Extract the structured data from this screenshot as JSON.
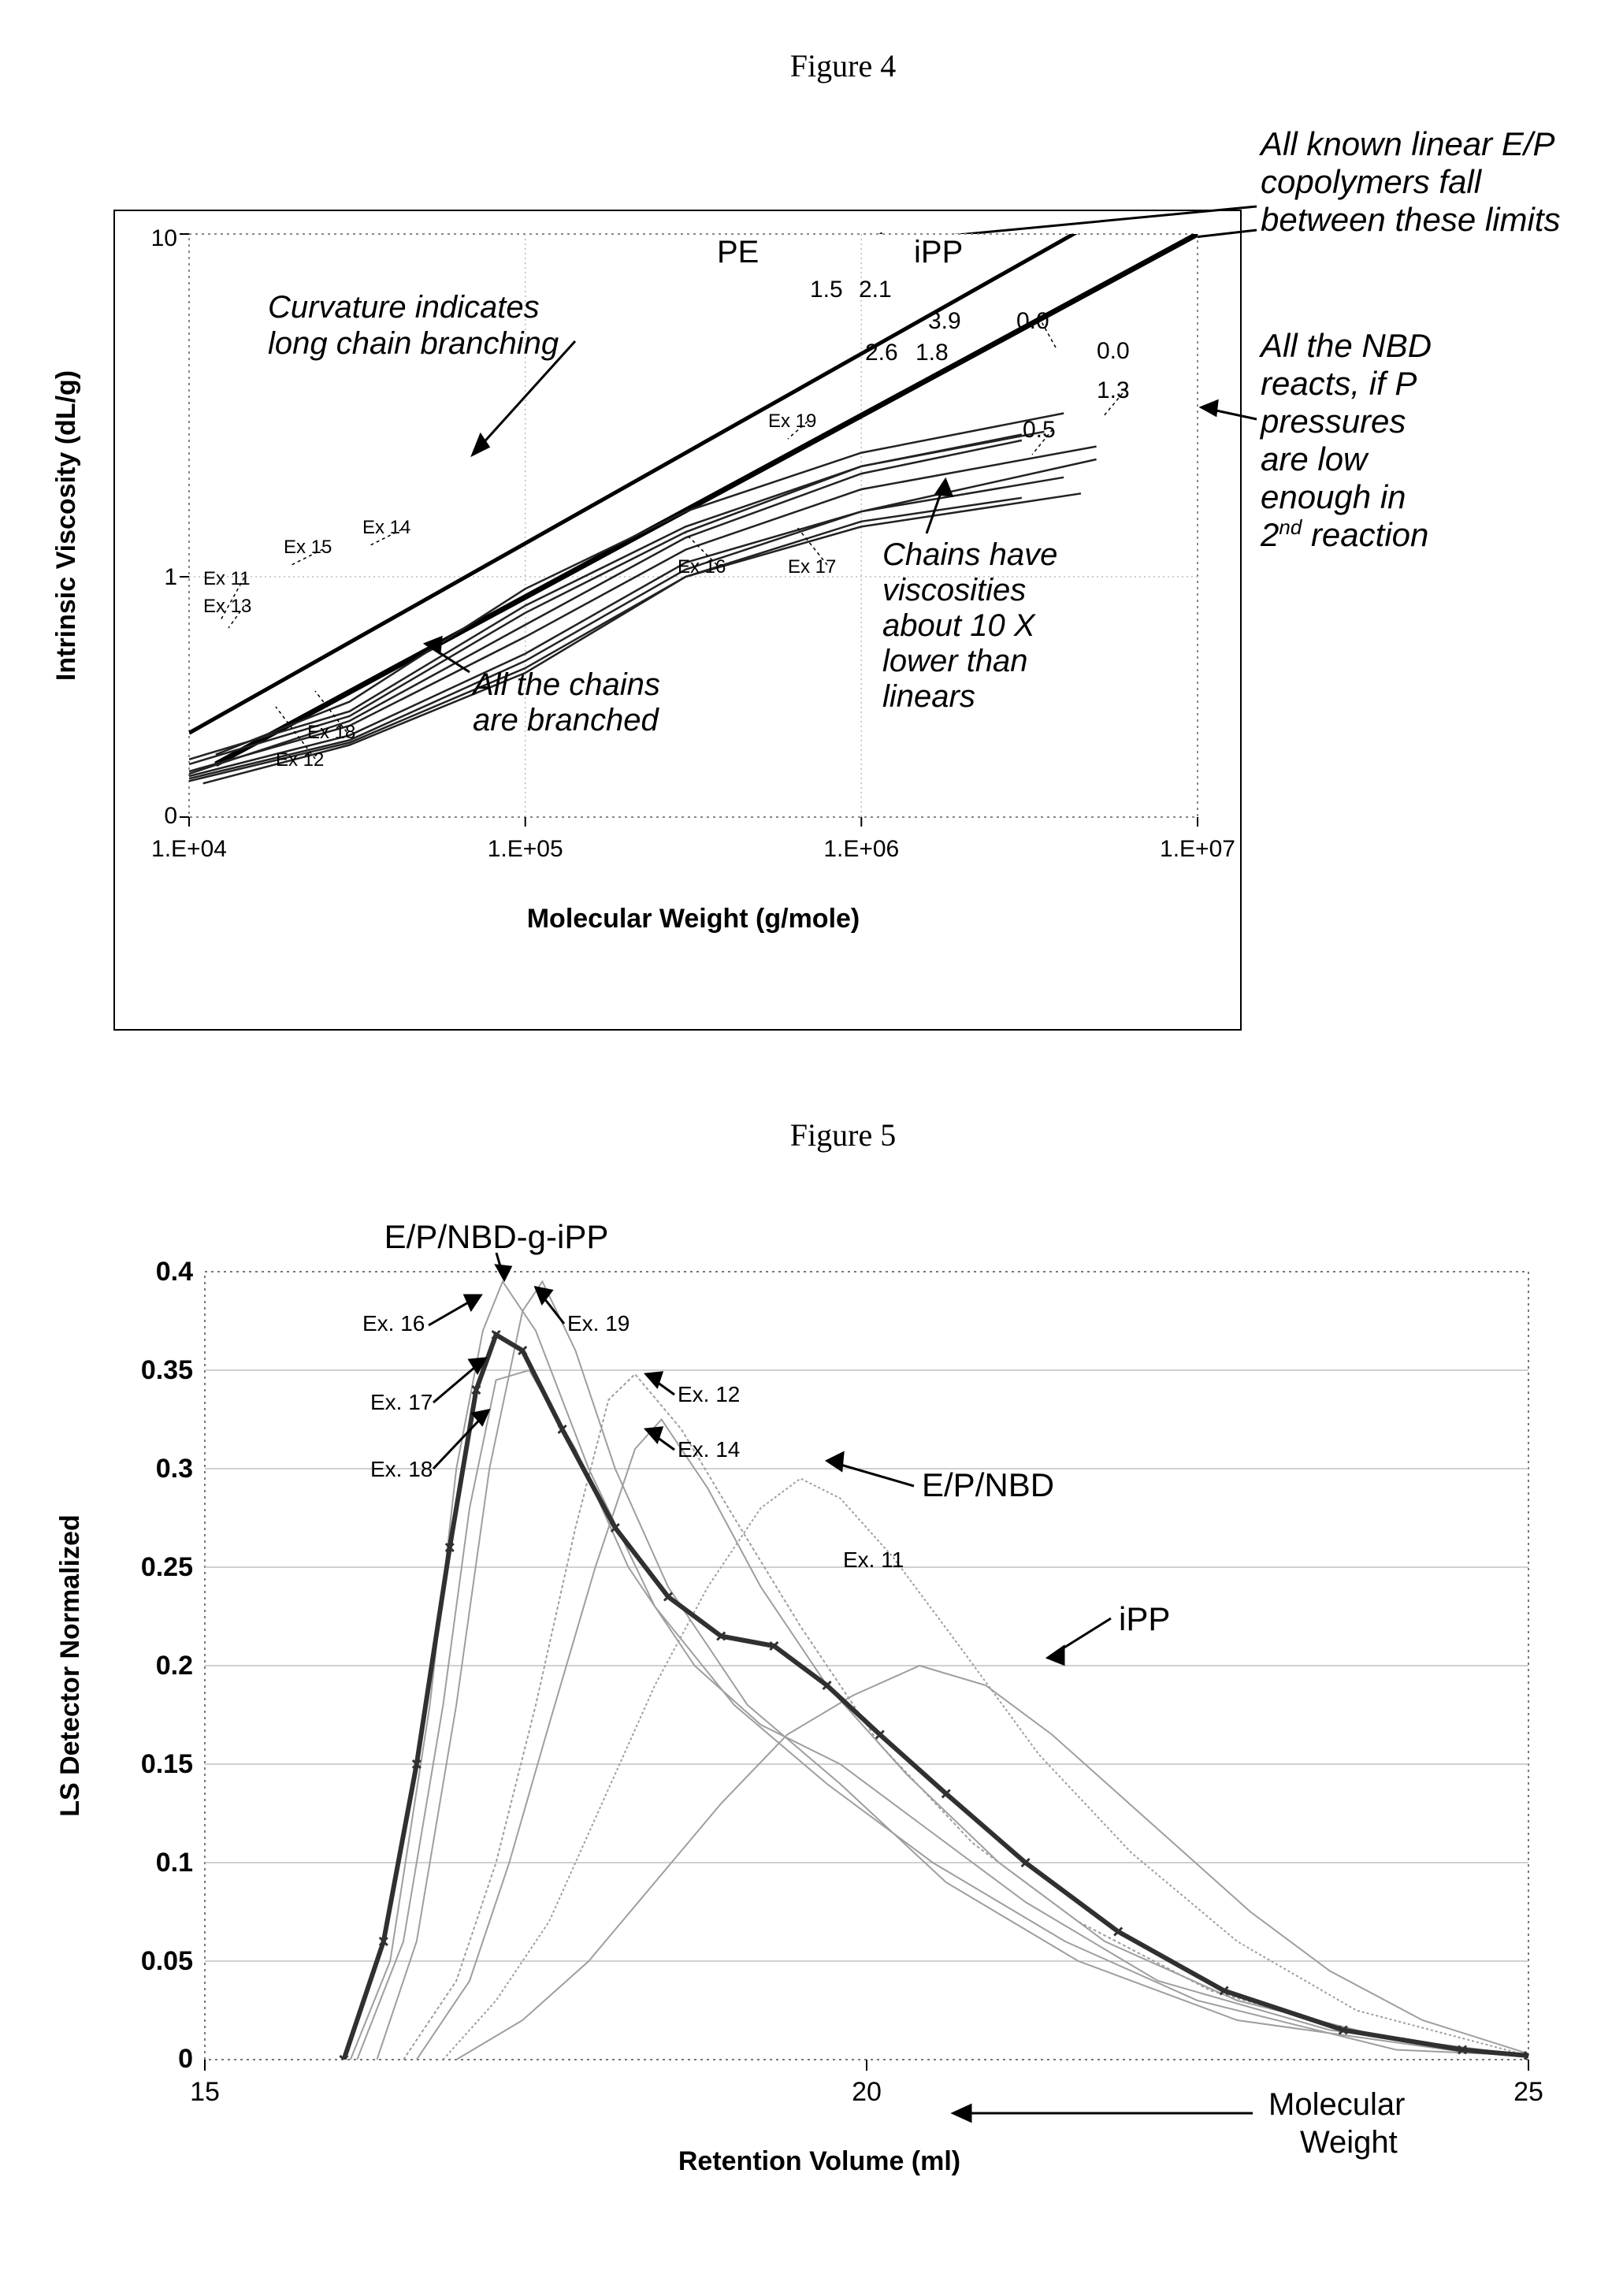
{
  "figure4": {
    "title": "Figure 4",
    "type": "log-log line chart",
    "xlabel": "Molecular Weight (g/mole)",
    "ylabel": "Intrinsic Viscosity (dL/g)",
    "xlim": [
      10000.0,
      10000000.0
    ],
    "ylim": [
      0,
      10
    ],
    "xticks": [
      "1.E+04",
      "1.E+05",
      "1.E+06",
      "1.E+07"
    ],
    "yticks": [
      "0",
      "1",
      "10"
    ],
    "background_color": "#ffffff",
    "axis_color": "#000000",
    "grid_color": "#bdbdbd",
    "grid_style": "dotted",
    "font": "Arial",
    "label_fontsize": 34,
    "tick_fontsize": 30,
    "line_color": "#000000",
    "reference_lines": {
      "PE": {
        "label": "PE",
        "pts": [
          [
            10000.0,
            0.35
          ],
          [
            10000000.0,
            16.0
          ]
        ],
        "width": 5
      },
      "iPP": {
        "label": "iPP",
        "pts": [
          [
            12000.0,
            0.22
          ],
          [
            10000000.0,
            10.0
          ]
        ],
        "width": 7
      }
    },
    "series": {
      "Ex11": {
        "pts": [
          [
            10000.0,
            0.18
          ],
          [
            30000.0,
            0.4
          ],
          [
            100000.0,
            0.8
          ],
          [
            300000.0,
            1.3
          ],
          [
            1000000.0,
            2.0
          ],
          [
            3000000.0,
            2.5
          ]
        ],
        "end_value": "2.1"
      },
      "Ex12": {
        "pts": [
          [
            11000.0,
            0.14
          ],
          [
            30000.0,
            0.3
          ],
          [
            100000.0,
            0.6
          ],
          [
            300000.0,
            1.0
          ],
          [
            1000000.0,
            1.45
          ],
          [
            3000000.0,
            1.7
          ]
        ],
        "end_value": "0.5"
      },
      "Ex13": {
        "pts": [
          [
            10000.0,
            0.22
          ],
          [
            30000.0,
            0.42
          ],
          [
            100000.0,
            0.85
          ],
          [
            300000.0,
            1.35
          ],
          [
            1000000.0,
            2.1
          ],
          [
            3000000.0,
            2.6
          ]
        ],
        "end_value": "1.5"
      },
      "Ex14": {
        "pts": [
          [
            12000.0,
            0.26
          ],
          [
            30000.0,
            0.48
          ],
          [
            100000.0,
            0.95
          ],
          [
            300000.0,
            1.55
          ],
          [
            1000000.0,
            2.3
          ],
          [
            4000000.0,
            3.0
          ]
        ],
        "end_value": "3.9"
      },
      "Ex15": {
        "pts": [
          [
            10000.0,
            0.24
          ],
          [
            30000.0,
            0.44
          ],
          [
            100000.0,
            0.88
          ],
          [
            300000.0,
            1.4
          ],
          [
            1000000.0,
            2.1
          ],
          [
            3500000.0,
            2.65
          ]
        ],
        "end_value": "2.6"
      },
      "Ex16": {
        "pts": [
          [
            10000.0,
            0.17
          ],
          [
            30000.0,
            0.34
          ],
          [
            100000.0,
            0.68
          ],
          [
            300000.0,
            1.1
          ],
          [
            1000000.0,
            1.55
          ],
          [
            4000000.0,
            1.95
          ]
        ],
        "end_value": "1.8"
      },
      "Ex17": {
        "pts": [
          [
            10000.0,
            0.15
          ],
          [
            30000.0,
            0.31
          ],
          [
            100000.0,
            0.62
          ],
          [
            300000.0,
            1.0
          ],
          [
            1000000.0,
            1.4
          ],
          [
            4500000.0,
            1.75
          ]
        ],
        "end_value": "1.3"
      },
      "Ex18": {
        "pts": [
          [
            10000.0,
            0.16
          ],
          [
            30000.0,
            0.32
          ],
          [
            100000.0,
            0.65
          ],
          [
            300000.0,
            1.05
          ],
          [
            1000000.0,
            1.55
          ],
          [
            5000000.0,
            2.2
          ]
        ],
        "end_value": "0.0"
      },
      "Ex19": {
        "pts": [
          [
            10000.0,
            0.19
          ],
          [
            30000.0,
            0.38
          ],
          [
            100000.0,
            0.75
          ],
          [
            300000.0,
            1.2
          ],
          [
            1000000.0,
            1.8
          ],
          [
            5000000.0,
            2.4
          ]
        ],
        "end_value": "0.0"
      }
    },
    "series_labels_at_start": {
      "Ex11": "Ex 11",
      "Ex12": "Ex 12",
      "Ex13": "Ex 13",
      "Ex14": "Ex 14",
      "Ex15": "Ex 15",
      "Ex16": "Ex 16",
      "Ex17": "Ex 17",
      "Ex18": "Ex 18",
      "Ex19": "Ex 19"
    },
    "annotations": {
      "top_right": "All known linear E/P copolymers fall between these limits",
      "curve": "Curvature indicates long chain branching",
      "branched": "All the chains are branched",
      "viscosity": "Chains have viscosities about 10 X lower than linears",
      "right_side": "All the NBD reacts, if P pressures are low enough in 2ⁿᵈ reaction"
    }
  },
  "figure5": {
    "title": "Figure 5",
    "type": "line chart (distributions)",
    "xlabel": "Retention Volume (ml)",
    "ylabel": "LS Detector Normalized",
    "extra_axis_label": "Molecular Weight",
    "xlim": [
      15,
      25
    ],
    "ylim": [
      0,
      0.4
    ],
    "xticks": [
      "15",
      "20",
      "25"
    ],
    "yticks": [
      "0",
      "0.05",
      "0.1",
      "0.15",
      "0.2",
      "0.25",
      "0.3",
      "0.35",
      "0.4"
    ],
    "background_color": "#ffffff",
    "axis_color": "#000000",
    "grid_color": "#c0c0c0",
    "grid_style": "solid",
    "border_style": "dotted",
    "font": "Arial",
    "label_fontsize": 34,
    "tick_fontsize": 30,
    "line_color_main": "#000000",
    "line_color_light": "#9e9e9e",
    "labels": {
      "top": "E/P/NBD-g-iPP",
      "mid_right": "E/P/NBD",
      "bot_right": "iPP"
    },
    "series_labels": [
      "Ex. 11",
      "Ex. 12",
      "Ex. 14",
      "Ex. 16",
      "Ex. 17",
      "Ex. 18",
      "Ex. 19"
    ],
    "series": {
      "Ex16": {
        "color": "#9e9e9e",
        "width": 2,
        "pts": [
          [
            16.1,
            0.0
          ],
          [
            16.4,
            0.05
          ],
          [
            16.7,
            0.18
          ],
          [
            16.9,
            0.3
          ],
          [
            17.1,
            0.37
          ],
          [
            17.25,
            0.395
          ],
          [
            17.5,
            0.37
          ],
          [
            17.9,
            0.3
          ],
          [
            18.4,
            0.23
          ],
          [
            19.0,
            0.18
          ],
          [
            19.7,
            0.14
          ],
          [
            20.5,
            0.1
          ],
          [
            21.5,
            0.06
          ],
          [
            22.5,
            0.03
          ],
          [
            24.0,
            0.005
          ],
          [
            25.0,
            0.002
          ]
        ]
      },
      "Ex19": {
        "color": "#9e9e9e",
        "width": 2,
        "pts": [
          [
            16.3,
            0.0
          ],
          [
            16.6,
            0.06
          ],
          [
            16.9,
            0.18
          ],
          [
            17.15,
            0.3
          ],
          [
            17.4,
            0.38
          ],
          [
            17.55,
            0.395
          ],
          [
            17.8,
            0.36
          ],
          [
            18.1,
            0.3
          ],
          [
            18.5,
            0.24
          ],
          [
            19.1,
            0.18
          ],
          [
            19.8,
            0.14
          ],
          [
            20.6,
            0.09
          ],
          [
            21.6,
            0.05
          ],
          [
            22.8,
            0.02
          ],
          [
            24.5,
            0.004
          ],
          [
            25.0,
            0.002
          ]
        ]
      },
      "Ex17": {
        "color": "#9e9e9e",
        "width": 2,
        "pts": [
          [
            16.15,
            0.0
          ],
          [
            16.5,
            0.06
          ],
          [
            16.8,
            0.18
          ],
          [
            17.0,
            0.28
          ],
          [
            17.2,
            0.345
          ],
          [
            17.45,
            0.35
          ],
          [
            17.8,
            0.31
          ],
          [
            18.2,
            0.25
          ],
          [
            18.7,
            0.2
          ],
          [
            19.2,
            0.17
          ],
          [
            19.8,
            0.15
          ],
          [
            20.4,
            0.12
          ],
          [
            21.2,
            0.08
          ],
          [
            22.2,
            0.04
          ],
          [
            23.5,
            0.015
          ],
          [
            25.0,
            0.002
          ]
        ]
      },
      "Ex18": {
        "color": "#303030",
        "width": 6,
        "marker": "x",
        "pts": [
          [
            16.05,
            0.0
          ],
          [
            16.35,
            0.06
          ],
          [
            16.6,
            0.15
          ],
          [
            16.85,
            0.26
          ],
          [
            17.05,
            0.34
          ],
          [
            17.2,
            0.368
          ],
          [
            17.4,
            0.36
          ],
          [
            17.7,
            0.32
          ],
          [
            18.1,
            0.27
          ],
          [
            18.5,
            0.235
          ],
          [
            18.9,
            0.215
          ],
          [
            19.3,
            0.21
          ],
          [
            19.7,
            0.19
          ],
          [
            20.1,
            0.165
          ],
          [
            20.6,
            0.135
          ],
          [
            21.2,
            0.1
          ],
          [
            21.9,
            0.065
          ],
          [
            22.7,
            0.035
          ],
          [
            23.6,
            0.015
          ],
          [
            24.5,
            0.005
          ],
          [
            25.0,
            0.002
          ]
        ]
      },
      "Ex12": {
        "color": "#9e9e9e",
        "width": 2,
        "dash": "4 3",
        "pts": [
          [
            16.5,
            0.0
          ],
          [
            16.9,
            0.04
          ],
          [
            17.2,
            0.1
          ],
          [
            17.5,
            0.18
          ],
          [
            17.8,
            0.27
          ],
          [
            18.05,
            0.335
          ],
          [
            18.25,
            0.348
          ],
          [
            18.6,
            0.32
          ],
          [
            19.0,
            0.275
          ],
          [
            19.5,
            0.22
          ],
          [
            20.1,
            0.16
          ],
          [
            20.8,
            0.11
          ],
          [
            21.6,
            0.07
          ],
          [
            22.6,
            0.035
          ],
          [
            23.8,
            0.012
          ],
          [
            25.0,
            0.002
          ]
        ]
      },
      "Ex14": {
        "color": "#9e9e9e",
        "width": 2,
        "pts": [
          [
            16.6,
            0.0
          ],
          [
            17.0,
            0.04
          ],
          [
            17.3,
            0.1
          ],
          [
            17.6,
            0.17
          ],
          [
            17.95,
            0.25
          ],
          [
            18.25,
            0.31
          ],
          [
            18.45,
            0.325
          ],
          [
            18.8,
            0.29
          ],
          [
            19.2,
            0.24
          ],
          [
            19.7,
            0.19
          ],
          [
            20.3,
            0.145
          ],
          [
            21.0,
            0.1
          ],
          [
            21.8,
            0.06
          ],
          [
            22.8,
            0.03
          ],
          [
            24.0,
            0.01
          ],
          [
            25.0,
            0.002
          ]
        ]
      },
      "Ex11": {
        "color": "#9e9e9e",
        "width": 2,
        "dash": "3 3",
        "pts": [
          [
            16.8,
            0.0
          ],
          [
            17.2,
            0.03
          ],
          [
            17.6,
            0.07
          ],
          [
            18.0,
            0.13
          ],
          [
            18.4,
            0.19
          ],
          [
            18.8,
            0.24
          ],
          [
            19.2,
            0.28
          ],
          [
            19.5,
            0.295
          ],
          [
            19.8,
            0.285
          ],
          [
            20.2,
            0.255
          ],
          [
            20.7,
            0.21
          ],
          [
            21.3,
            0.155
          ],
          [
            22.0,
            0.105
          ],
          [
            22.8,
            0.06
          ],
          [
            23.7,
            0.025
          ],
          [
            25.0,
            0.002
          ]
        ]
      },
      "iPP": {
        "color": "#9e9e9e",
        "width": 2,
        "pts": [
          [
            16.9,
            0.0
          ],
          [
            17.4,
            0.02
          ],
          [
            17.9,
            0.05
          ],
          [
            18.4,
            0.09
          ],
          [
            18.9,
            0.13
          ],
          [
            19.4,
            0.165
          ],
          [
            19.9,
            0.185
          ],
          [
            20.4,
            0.2
          ],
          [
            20.9,
            0.19
          ],
          [
            21.4,
            0.165
          ],
          [
            21.9,
            0.135
          ],
          [
            22.4,
            0.105
          ],
          [
            22.9,
            0.075
          ],
          [
            23.5,
            0.045
          ],
          [
            24.2,
            0.02
          ],
          [
            25.0,
            0.003
          ]
        ]
      }
    }
  }
}
